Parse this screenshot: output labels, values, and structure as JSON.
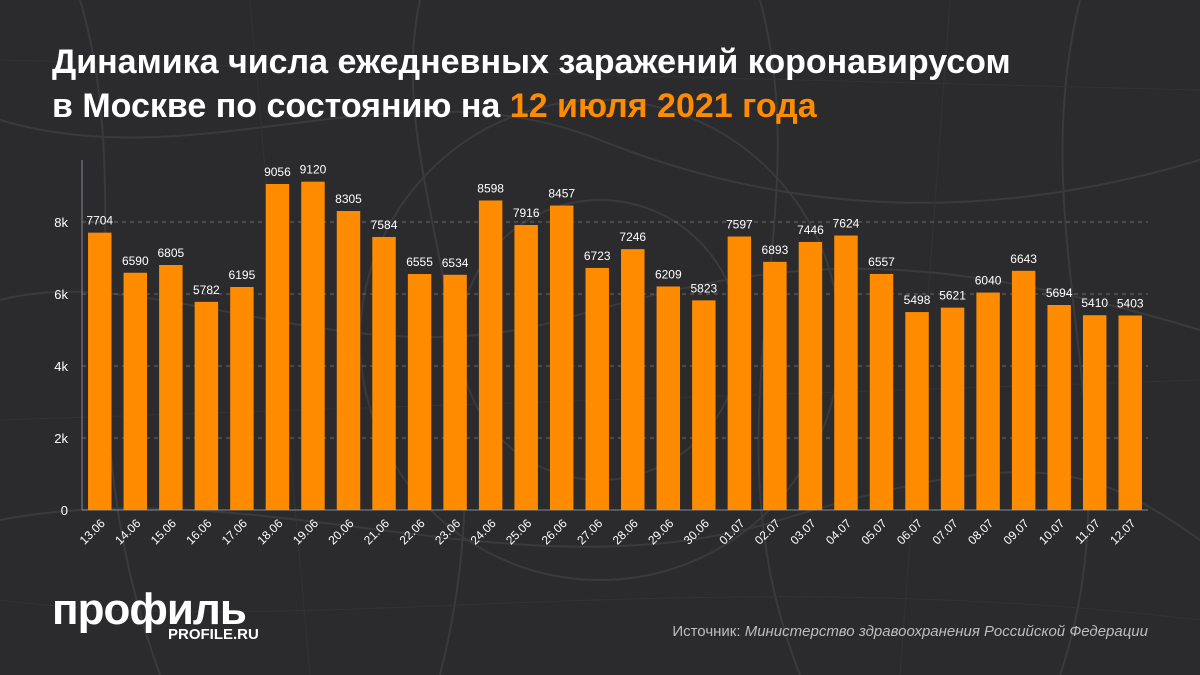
{
  "title": {
    "main": "Динамика числа ежедневных заражений коронавирусом",
    "line2_prefix": "в Москве по состоянию на",
    "line2_accent": "12 июля 2021 года"
  },
  "logo": {
    "name": "профиль",
    "site": "PROFILE.RU"
  },
  "source": {
    "label": "Источник:",
    "name": "Министерство здравоохранения Российской Федерации"
  },
  "colors": {
    "bar": "#ff8c00",
    "accent": "#ff8c00",
    "background": "#2b2b2d",
    "text": "#ffffff"
  },
  "chart_data": {
    "type": "bar",
    "categories": [
      "13.06",
      "14.06",
      "15.06",
      "16.06",
      "17.06",
      "18.06",
      "19.06",
      "20.06",
      "21.06",
      "22.06",
      "23.06",
      "24.06",
      "25.06",
      "26.06",
      "27.06",
      "28.06",
      "29.06",
      "30.06",
      "01.07",
      "02.07",
      "03.07",
      "04.07",
      "05.07",
      "06.07",
      "07.07",
      "08.07",
      "09.07",
      "10.07",
      "11.07",
      "12.07"
    ],
    "values": [
      7704,
      6590,
      6805,
      5782,
      6195,
      9056,
      9120,
      8305,
      7584,
      6555,
      6534,
      8598,
      7916,
      8457,
      6723,
      7246,
      6209,
      5823,
      7597,
      6893,
      7446,
      7624,
      6557,
      5498,
      5621,
      6040,
      6643,
      5694,
      5410,
      5403
    ],
    "ylim": [
      0,
      10000
    ],
    "yticks": [
      0,
      2000,
      4000,
      6000,
      8000
    ],
    "ytick_labels": [
      "0",
      "2k",
      "4k",
      "6k",
      "8k"
    ],
    "grid": true,
    "data_labels": true
  }
}
